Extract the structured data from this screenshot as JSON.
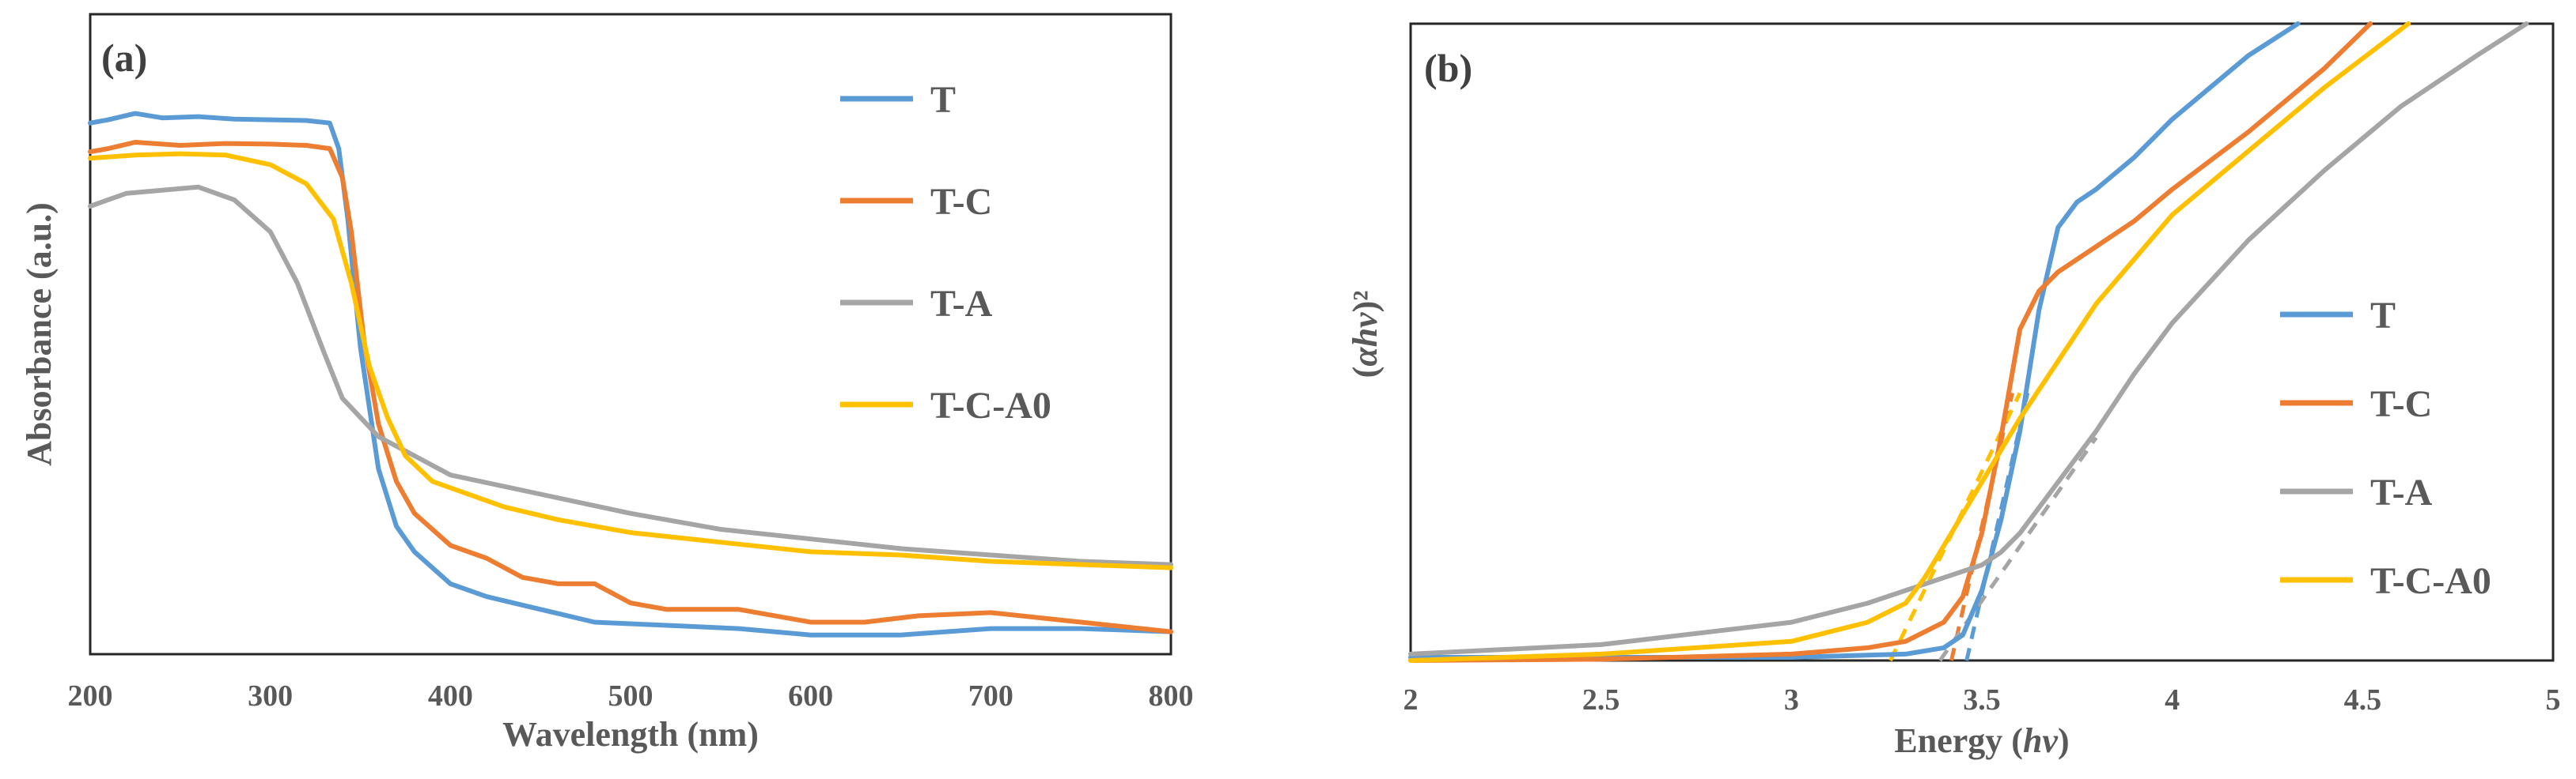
{
  "chart_data": [
    {
      "type": "line",
      "panel_label": "(a)",
      "xlabel": "Wavelength (nm)",
      "ylabel": "Absorbance (a.u.)",
      "xlim": [
        200,
        800
      ],
      "ylim": [
        0,
        1.0
      ],
      "y_ticks_shown": false,
      "grid": false,
      "legend_position": "top-right",
      "x_ticks": [
        200,
        300,
        400,
        500,
        600,
        700,
        800
      ],
      "series": [
        {
          "name": "T",
          "color": "#5B9BD5",
          "x": [
            200,
            210,
            225,
            240,
            260,
            280,
            300,
            320,
            333,
            338,
            343,
            350,
            360,
            370,
            380,
            400,
            420,
            450,
            480,
            520,
            560,
            600,
            650,
            700,
            750,
            800
          ],
          "y": [
            0.83,
            0.835,
            0.845,
            0.838,
            0.84,
            0.836,
            0.835,
            0.834,
            0.83,
            0.79,
            0.68,
            0.48,
            0.29,
            0.2,
            0.16,
            0.11,
            0.09,
            0.07,
            0.05,
            0.045,
            0.04,
            0.03,
            0.03,
            0.04,
            0.04,
            0.035
          ]
        },
        {
          "name": "T-C",
          "color": "#ED7D31",
          "x": [
            200,
            210,
            225,
            250,
            275,
            300,
            320,
            333,
            340,
            345,
            352,
            360,
            370,
            380,
            400,
            420,
            440,
            460,
            480,
            500,
            520,
            560,
            600,
            630,
            660,
            700,
            750,
            800
          ],
          "y": [
            0.785,
            0.79,
            0.8,
            0.795,
            0.798,
            0.797,
            0.795,
            0.79,
            0.745,
            0.66,
            0.49,
            0.36,
            0.27,
            0.22,
            0.17,
            0.15,
            0.12,
            0.11,
            0.11,
            0.08,
            0.07,
            0.07,
            0.05,
            0.05,
            0.06,
            0.065,
            0.05,
            0.035
          ]
        },
        {
          "name": "T-A",
          "color": "#A5A5A5",
          "x": [
            200,
            220,
            240,
            260,
            280,
            300,
            315,
            330,
            340,
            350,
            360,
            380,
            400,
            450,
            500,
            550,
            600,
            650,
            700,
            750,
            800
          ],
          "y": [
            0.7,
            0.72,
            0.725,
            0.73,
            0.71,
            0.66,
            0.58,
            0.47,
            0.4,
            0.37,
            0.34,
            0.31,
            0.28,
            0.25,
            0.22,
            0.195,
            0.18,
            0.165,
            0.155,
            0.145,
            0.14
          ]
        },
        {
          "name": "T-C-A0",
          "color": "#FFC000",
          "x": [
            200,
            225,
            250,
            275,
            300,
            320,
            335,
            345,
            355,
            365,
            375,
            390,
            400,
            430,
            460,
            500,
            550,
            600,
            650,
            700,
            750,
            800
          ],
          "y": [
            0.775,
            0.78,
            0.782,
            0.78,
            0.765,
            0.735,
            0.68,
            0.58,
            0.45,
            0.37,
            0.31,
            0.27,
            0.26,
            0.23,
            0.21,
            0.19,
            0.175,
            0.16,
            0.155,
            0.145,
            0.14,
            0.135
          ]
        }
      ]
    },
    {
      "type": "line",
      "panel_label": "(b)",
      "xlabel": "Energy (hv)",
      "ylabel": "(αhv)²",
      "xlim": [
        2,
        5
      ],
      "ylim": [
        0,
        1.0
      ],
      "y_ticks_shown": false,
      "grid": false,
      "legend_position": "right",
      "x_ticks": [
        "2",
        "2.5",
        "3",
        "3.5",
        "4",
        "4.5",
        "5"
      ],
      "series": [
        {
          "name": "T",
          "color": "#5B9BD5",
          "x": [
            2.0,
            2.5,
            3.0,
            3.3,
            3.4,
            3.45,
            3.5,
            3.55,
            3.6,
            3.65,
            3.7,
            3.75,
            3.8,
            3.9,
            4.0,
            4.1,
            4.2,
            4.33
          ],
          "y": [
            0.005,
            0.005,
            0.005,
            0.01,
            0.02,
            0.04,
            0.11,
            0.22,
            0.36,
            0.55,
            0.68,
            0.72,
            0.74,
            0.79,
            0.85,
            0.9,
            0.95,
            1.0
          ]
        },
        {
          "name": "T-C",
          "color": "#ED7D31",
          "x": [
            2.0,
            2.5,
            3.0,
            3.2,
            3.3,
            3.4,
            3.45,
            3.5,
            3.55,
            3.6,
            3.65,
            3.7,
            3.8,
            3.9,
            4.0,
            4.2,
            4.4,
            4.52
          ],
          "y": [
            0.0,
            0.002,
            0.01,
            0.02,
            0.03,
            0.06,
            0.1,
            0.2,
            0.35,
            0.52,
            0.58,
            0.61,
            0.65,
            0.69,
            0.74,
            0.83,
            0.93,
            1.0
          ]
        },
        {
          "name": "T-A",
          "color": "#A5A5A5",
          "x": [
            2.0,
            2.5,
            3.0,
            3.2,
            3.4,
            3.5,
            3.55,
            3.6,
            3.65,
            3.7,
            3.8,
            3.9,
            4.0,
            4.2,
            4.4,
            4.6,
            4.8,
            4.93
          ],
          "y": [
            0.01,
            0.025,
            0.06,
            0.09,
            0.13,
            0.15,
            0.17,
            0.2,
            0.24,
            0.28,
            0.36,
            0.45,
            0.53,
            0.66,
            0.77,
            0.87,
            0.95,
            1.0
          ]
        },
        {
          "name": "T-C-A0",
          "color": "#FFC000",
          "x": [
            2.0,
            2.5,
            3.0,
            3.2,
            3.3,
            3.35,
            3.4,
            3.45,
            3.5,
            3.55,
            3.6,
            3.7,
            3.8,
            4.0,
            4.2,
            4.4,
            4.62
          ],
          "y": [
            0.0,
            0.01,
            0.03,
            0.06,
            0.09,
            0.13,
            0.18,
            0.23,
            0.28,
            0.33,
            0.38,
            0.47,
            0.56,
            0.7,
            0.8,
            0.9,
            1.0
          ]
        }
      ],
      "tangent_lines": [
        {
          "series": "T",
          "color": "#5B9BD5",
          "x": [
            3.46,
            3.62
          ],
          "y": [
            0.0,
            0.42
          ]
        },
        {
          "series": "T-C",
          "color": "#ED7D31",
          "x": [
            3.42,
            3.58
          ],
          "y": [
            0.0,
            0.42
          ]
        },
        {
          "series": "T-A",
          "color": "#A5A5A5",
          "x": [
            3.39,
            3.8
          ],
          "y": [
            0.0,
            0.35
          ]
        },
        {
          "series": "T-C-A0",
          "color": "#FFC000",
          "x": [
            3.26,
            3.6
          ],
          "y": [
            0.0,
            0.42
          ]
        }
      ]
    }
  ]
}
